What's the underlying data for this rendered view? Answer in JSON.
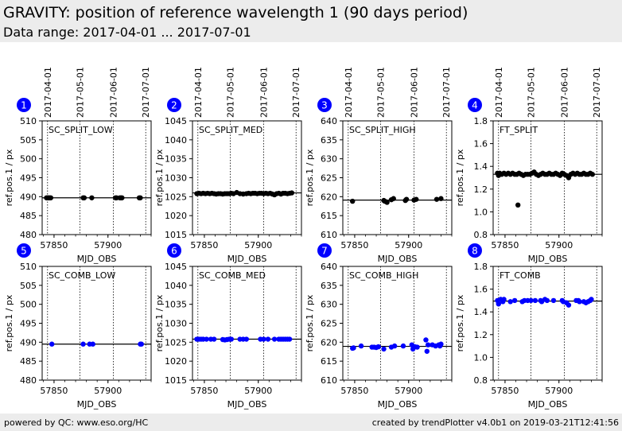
{
  "header": {
    "title": "GRAVITY: position of reference wavelength 1 (90 days period)",
    "subtitle": "Data range: 2017-04-01 ... 2017-07-01"
  },
  "footer": {
    "left": "powered by QC: www.eso.org/HC",
    "right": "created by trendPlotter v4.0b1 on 2019-03-21T12:41:56"
  },
  "colors": {
    "header_bg": "#ececec",
    "badge": "#0000ff",
    "series_split": "#000000",
    "series_comb": "#0000ff"
  },
  "date_labels": [
    {
      "label": "2017-04-01",
      "mjd": 57844
    },
    {
      "label": "2017-05-01",
      "mjd": 57874
    },
    {
      "label": "2017-06-01",
      "mjd": 57905
    },
    {
      "label": "2017-07-01",
      "mjd": 57935
    }
  ],
  "chart_data": [
    {
      "type": "scatter",
      "id": 1,
      "title": "SC_SPLIT_LOW",
      "color": "#000000",
      "xlabel": "MJD_OBS",
      "ylabel": "ref.pos.1 / px",
      "xlim": [
        57839,
        57940
      ],
      "ylim": [
        480,
        510
      ],
      "xticks": [
        57850,
        57900
      ],
      "yticks": [
        480,
        485,
        490,
        495,
        500,
        505,
        510
      ],
      "ref_line": 489.7,
      "x": [
        57843,
        57844,
        57845,
        57846,
        57847,
        57877,
        57878,
        57885,
        57907,
        57908,
        57911,
        57912,
        57913,
        57929,
        57930
      ],
      "y": [
        489.7,
        489.7,
        489.7,
        489.7,
        489.7,
        489.7,
        489.7,
        489.7,
        489.7,
        489.7,
        489.7,
        489.7,
        489.7,
        489.7,
        489.7
      ]
    },
    {
      "type": "scatter",
      "id": 2,
      "title": "SC_SPLIT_MED",
      "color": "#000000",
      "xlabel": "MJD_OBS",
      "ylabel": "ref.pos.1 / px",
      "xlim": [
        57839,
        57940
      ],
      "ylim": [
        1015,
        1045
      ],
      "xticks": [
        57850,
        57900
      ],
      "yticks": [
        1015,
        1020,
        1025,
        1030,
        1035,
        1040,
        1045
      ],
      "ref_line": 1026.0,
      "x": [
        57843,
        57845,
        57847,
        57849,
        57851,
        57853,
        57855,
        57857,
        57859,
        57861,
        57863,
        57865,
        57867,
        57869,
        57871,
        57873,
        57875,
        57877,
        57880,
        57883,
        57886,
        57889,
        57891,
        57893,
        57895,
        57897,
        57899,
        57901,
        57903,
        57905,
        57907,
        57909,
        57911,
        57913,
        57915,
        57917,
        57919,
        57921,
        57923,
        57925,
        57927,
        57929,
        57931
      ],
      "y": [
        1025.8,
        1025.9,
        1025.8,
        1025.9,
        1025.8,
        1025.9,
        1025.8,
        1025.9,
        1025.8,
        1025.7,
        1025.8,
        1025.8,
        1025.7,
        1025.8,
        1025.8,
        1025.8,
        1025.9,
        1025.8,
        1026.1,
        1025.8,
        1025.7,
        1025.8,
        1025.9,
        1025.8,
        1025.9,
        1025.9,
        1025.8,
        1025.9,
        1025.9,
        1025.8,
        1025.9,
        1025.8,
        1025.9,
        1025.7,
        1025.5,
        1025.8,
        1025.9,
        1025.7,
        1025.9,
        1025.9,
        1025.8,
        1025.9,
        1026.0
      ]
    },
    {
      "type": "scatter",
      "id": 3,
      "title": "SC_SPLIT_HIGH",
      "color": "#000000",
      "xlabel": "MJD_OBS",
      "ylabel": "ref.pos.1 / px",
      "xlim": [
        57839,
        57940
      ],
      "ylim": [
        610,
        640
      ],
      "xticks": [
        57850,
        57900
      ],
      "yticks": [
        610,
        615,
        620,
        625,
        630,
        635,
        640
      ],
      "ref_line": 619.1,
      "x": [
        57848,
        57877,
        57878,
        57880,
        57884,
        57886,
        57897,
        57898,
        57905,
        57907,
        57926,
        57930
      ],
      "y": [
        618.8,
        619.0,
        618.8,
        618.5,
        619.2,
        619.5,
        619.0,
        619.3,
        619.1,
        619.3,
        619.3,
        619.5
      ]
    },
    {
      "type": "scatter",
      "id": 4,
      "title": "FT_SPLIT",
      "color": "#000000",
      "xlabel": "MJD_OBS",
      "ylabel": "ref.pos.1 / px",
      "xlim": [
        57839,
        57940
      ],
      "ylim": [
        0.8,
        1.8
      ],
      "xticks": [
        57850,
        57900
      ],
      "yticks": [
        0.8,
        1.0,
        1.2,
        1.4,
        1.6,
        1.8
      ],
      "ref_line": 1.33,
      "x": [
        57843,
        57844,
        57845,
        57847,
        57849,
        57851,
        57853,
        57855,
        57857,
        57859,
        57861,
        57862,
        57863,
        57865,
        57867,
        57869,
        57871,
        57873,
        57875,
        57877,
        57879,
        57881,
        57883,
        57885,
        57887,
        57889,
        57891,
        57893,
        57895,
        57897,
        57899,
        57901,
        57903,
        57905,
        57907,
        57909,
        57911,
        57913,
        57915,
        57917,
        57919,
        57921,
        57923,
        57925,
        57927,
        57929,
        57931
      ],
      "y": [
        1.34,
        1.32,
        1.34,
        1.33,
        1.34,
        1.33,
        1.34,
        1.33,
        1.34,
        1.33,
        1.33,
        1.06,
        1.34,
        1.33,
        1.32,
        1.33,
        1.33,
        1.33,
        1.34,
        1.35,
        1.33,
        1.32,
        1.33,
        1.34,
        1.33,
        1.33,
        1.34,
        1.33,
        1.33,
        1.34,
        1.33,
        1.32,
        1.34,
        1.33,
        1.32,
        1.3,
        1.33,
        1.34,
        1.33,
        1.34,
        1.33,
        1.33,
        1.34,
        1.33,
        1.33,
        1.34,
        1.33
      ]
    },
    {
      "type": "scatter",
      "id": 5,
      "title": "SC_COMB_LOW",
      "color": "#0000ff",
      "xlabel": "MJD_OBS",
      "ylabel": "ref.pos.1 / px",
      "xlim": [
        57839,
        57940
      ],
      "ylim": [
        480,
        510
      ],
      "xticks": [
        57850,
        57900
      ],
      "yticks": [
        480,
        485,
        490,
        495,
        500,
        505,
        510
      ],
      "ref_line": 489.5,
      "x": [
        57848,
        57877,
        57883,
        57886,
        57930,
        57931
      ],
      "y": [
        489.5,
        489.5,
        489.5,
        489.5,
        489.5,
        489.5
      ]
    },
    {
      "type": "scatter",
      "id": 6,
      "title": "SC_COMB_MED",
      "color": "#0000ff",
      "xlabel": "MJD_OBS",
      "ylabel": "ref.pos.1 / px",
      "xlim": [
        57839,
        57940
      ],
      "ylim": [
        1015,
        1045
      ],
      "xticks": [
        57850,
        57900
      ],
      "yticks": [
        1015,
        1020,
        1025,
        1030,
        1035,
        1040,
        1045
      ],
      "ref_line": 1025.8,
      "x": [
        57843,
        57845,
        57847,
        57849,
        57852,
        57856,
        57859,
        57867,
        57869,
        57871,
        57873,
        57875,
        57883,
        57886,
        57889,
        57902,
        57905,
        57909,
        57915,
        57919,
        57921,
        57923,
        57925,
        57927,
        57929
      ],
      "y": [
        1025.8,
        1025.8,
        1025.8,
        1025.8,
        1025.8,
        1025.8,
        1025.8,
        1025.7,
        1025.6,
        1025.7,
        1025.8,
        1025.8,
        1025.8,
        1025.8,
        1025.8,
        1025.8,
        1025.8,
        1025.8,
        1025.8,
        1025.8,
        1025.8,
        1025.8,
        1025.8,
        1025.8,
        1025.8
      ]
    },
    {
      "type": "scatter",
      "id": 7,
      "title": "SC_COMB_HIGH",
      "color": "#0000ff",
      "xlabel": "MJD_OBS",
      "ylabel": "ref.pos.1 / px",
      "xlim": [
        57839,
        57940
      ],
      "ylim": [
        610,
        640
      ],
      "xticks": [
        57850,
        57900
      ],
      "yticks": [
        610,
        615,
        620,
        625,
        630,
        635,
        640
      ],
      "ref_line": 618.9,
      "x": [
        57848,
        57849,
        57856,
        57866,
        57868,
        57870,
        57872,
        57877,
        57884,
        57887,
        57895,
        57903,
        57904,
        57906,
        57908,
        57916,
        57917,
        57918,
        57922,
        57925,
        57928,
        57929,
        57930
      ],
      "y": [
        618.4,
        618.5,
        619.0,
        618.7,
        618.7,
        618.6,
        618.8,
        618.2,
        618.7,
        619.0,
        619.0,
        619.3,
        618.2,
        618.8,
        618.7,
        620.6,
        617.6,
        619.3,
        619.3,
        619.0,
        619.3,
        619.0,
        619.5
      ]
    },
    {
      "type": "scatter",
      "id": 8,
      "title": "FT_COMB",
      "color": "#0000ff",
      "xlabel": "MJD_OBS",
      "ylabel": "ref.pos.1 / px",
      "xlim": [
        57839,
        57940
      ],
      "ylim": [
        0.8,
        1.8
      ],
      "xticks": [
        57850,
        57900
      ],
      "yticks": [
        0.8,
        1.0,
        1.2,
        1.4,
        1.6,
        1.8
      ],
      "ref_line": 1.495,
      "x": [
        57843,
        57844,
        57846,
        57848,
        57849,
        57855,
        57859,
        57866,
        57868,
        57871,
        57874,
        57878,
        57883,
        57884,
        57887,
        57889,
        57895,
        57903,
        57904,
        57907,
        57909,
        57916,
        57918,
        57919,
        57923,
        57925,
        57927,
        57929,
        57930
      ],
      "y": [
        1.5,
        1.47,
        1.51,
        1.49,
        1.51,
        1.49,
        1.5,
        1.49,
        1.5,
        1.5,
        1.5,
        1.5,
        1.5,
        1.49,
        1.51,
        1.5,
        1.5,
        1.5,
        1.49,
        1.48,
        1.46,
        1.5,
        1.5,
        1.49,
        1.49,
        1.48,
        1.49,
        1.5,
        1.51
      ]
    }
  ]
}
